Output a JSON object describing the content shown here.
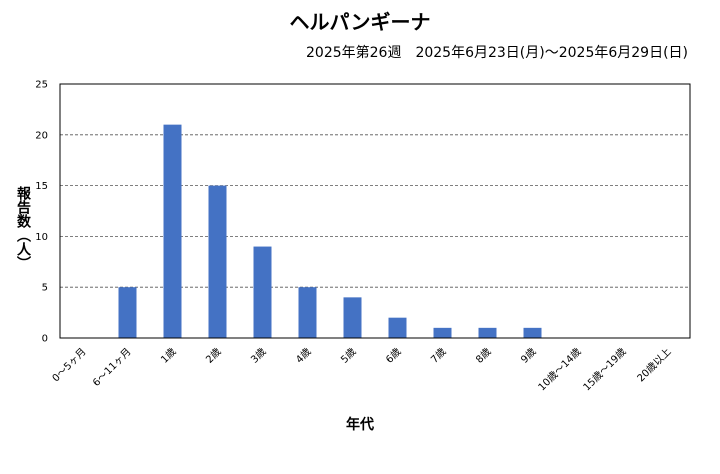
{
  "chart_data": {
    "type": "bar",
    "title": "ヘルパンギーナ",
    "subtitle": "2025年第26週　2025年6月23日(月)～2025年6月29日(日)",
    "xlabel": "年代",
    "ylabel": "報告数（人）",
    "categories": [
      "0～5ヶ月",
      "6～11ヶ月",
      "1歳",
      "2歳",
      "3歳",
      "4歳",
      "5歳",
      "6歳",
      "7歳",
      "8歳",
      "9歳",
      "10歳～14歳",
      "15歳～19歳",
      "20歳以上"
    ],
    "values": [
      0,
      5,
      21,
      15,
      9,
      5,
      4,
      2,
      1,
      1,
      1,
      0,
      0,
      0
    ],
    "ylim": [
      0,
      25
    ],
    "yticks": [
      0,
      5,
      10,
      15,
      20,
      25
    ],
    "grid": true,
    "legend": "none",
    "bar_color": "#4472c4"
  }
}
